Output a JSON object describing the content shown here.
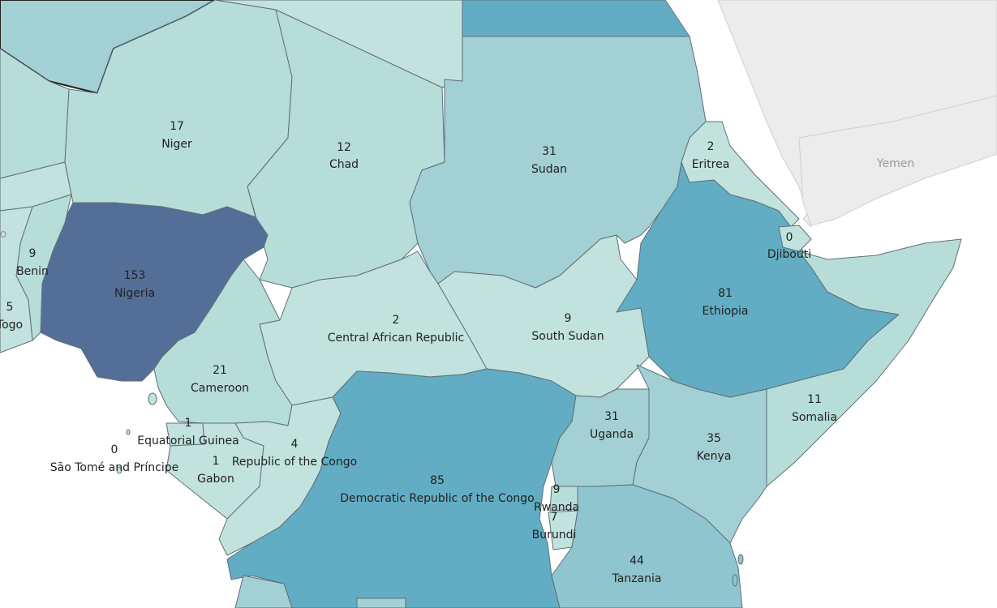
{
  "map": {
    "colors": {
      "water": "#ffffff",
      "neutral_land": "#ececec",
      "scale": [
        "#c2e2dd",
        "#b7ddd9",
        "#a2d0d4",
        "#8fc5cf",
        "#62adc3",
        "#536f98"
      ]
    },
    "countries": [
      {
        "name": "Nigeria",
        "value": "153",
        "color": "#536f98"
      },
      {
        "name": "Niger",
        "value": "17",
        "color": "#b7ddd9"
      },
      {
        "name": "Chad",
        "value": "12",
        "color": "#b7ddd9"
      },
      {
        "name": "Sudan",
        "value": "31",
        "color": "#a2d0d4"
      },
      {
        "name": "Eritrea",
        "value": "2",
        "color": "#c2e2dd"
      },
      {
        "name": "Djibouti",
        "value": "0",
        "color": "#c2e2dd"
      },
      {
        "name": "Ethiopia",
        "value": "81",
        "color": "#62adc3"
      },
      {
        "name": "Somalia",
        "value": "11",
        "color": "#b7ddd9"
      },
      {
        "name": "Kenya",
        "value": "35",
        "color": "#a2d0d4"
      },
      {
        "name": "Uganda",
        "value": "31",
        "color": "#a2d0d4"
      },
      {
        "name": "South Sudan",
        "value": "9",
        "color": "#c2e2dd"
      },
      {
        "name": "Central African Republic",
        "value": "2",
        "color": "#c2e2dd"
      },
      {
        "name": "Democratic Republic of the Congo",
        "value": "85",
        "color": "#62adc3"
      },
      {
        "name": "Rwanda",
        "value": "9",
        "color": "#b7ddd9"
      },
      {
        "name": "Burundi",
        "value": "7",
        "color": "#c2e2dd"
      },
      {
        "name": "Tanzania",
        "value": "44",
        "color": "#8fc5cf"
      },
      {
        "name": "Cameroon",
        "value": "21",
        "color": "#b7ddd9"
      },
      {
        "name": "Equatorial Guinea",
        "value": "1",
        "color": "#c2e2dd"
      },
      {
        "name": "Gabon",
        "value": "1",
        "color": "#c2e2dd"
      },
      {
        "name": "Republic of the Congo",
        "value": "4",
        "color": "#c2e2dd"
      },
      {
        "name": "São Tomé and Príncipe",
        "value": "0",
        "color": "#c2e2dd"
      },
      {
        "name": "Benin",
        "value": "9",
        "color": "#b7ddd9"
      },
      {
        "name": "Togo",
        "value": "5",
        "color": "#c2e2dd"
      }
    ],
    "background_countries": {
      "yemen": "Yemen"
    },
    "partial_label": "o"
  }
}
